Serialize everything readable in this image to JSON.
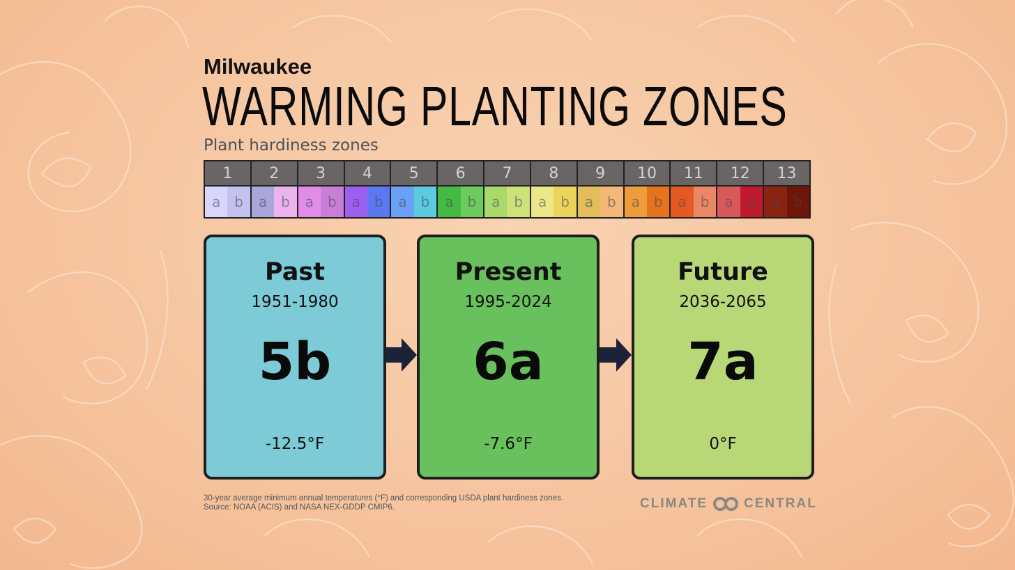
{
  "header": {
    "city": "Milwaukee",
    "title": "WARMING PLANTING ZONES",
    "subtitle": "Plant hardiness zones"
  },
  "zone_legend": {
    "zones": [
      {
        "label": "1",
        "a_color": "#d8d6fa",
        "b_color": "#c4c2f0"
      },
      {
        "label": "2",
        "a_color": "#a9a6da",
        "b_color": "#ecb3ee"
      },
      {
        "label": "3",
        "a_color": "#e08ce8",
        "b_color": "#c97fd8"
      },
      {
        "label": "4",
        "a_color": "#9d5ff0",
        "b_color": "#5b78f0"
      },
      {
        "label": "5",
        "a_color": "#6aa0f5",
        "b_color": "#5ccbe0"
      },
      {
        "label": "6",
        "a_color": "#44ba44",
        "b_color": "#6ccb5c"
      },
      {
        "label": "7",
        "a_color": "#a8d96a",
        "b_color": "#cfe27a"
      },
      {
        "label": "8",
        "a_color": "#ece88a",
        "b_color": "#ecd45a"
      },
      {
        "label": "9",
        "a_color": "#e2bd5a",
        "b_color": "#f3b877"
      },
      {
        "label": "10",
        "a_color": "#ee9d3c",
        "b_color": "#e6741d"
      },
      {
        "label": "11",
        "a_color": "#e45922",
        "b_color": "#e98766"
      },
      {
        "label": "12",
        "a_color": "#d9585a",
        "b_color": "#c01a2e"
      },
      {
        "label": "13",
        "a_color": "#8b2312",
        "b_color": "#6e1608"
      }
    ],
    "sub_a": "a",
    "sub_b": "b"
  },
  "cards": [
    {
      "label": "Past",
      "years": "1951-1980",
      "zone": "5b",
      "temp": "-12.5°F",
      "color": "#7ccbd6"
    },
    {
      "label": "Present",
      "years": "1995-2024",
      "zone": "6a",
      "temp": "-7.6°F",
      "color": "#68c15c"
    },
    {
      "label": "Future",
      "years": "2036-2065",
      "zone": "7a",
      "temp": "0°F",
      "color": "#b8d878"
    }
  ],
  "footnote": {
    "line1": "30-year average minimum annual temperatures (°F) and corresponding USDA plant hardiness zones.",
    "line2": "Source: NOAA (ACIS) and NASA NEX-GDDP CMIP6."
  },
  "logo": {
    "left": "CLIMATE",
    "right": "CENTRAL"
  },
  "colors": {
    "arrow": "#1c2238",
    "card_border": "#1e1e1e",
    "zone_header_bg": "#6a6565"
  }
}
